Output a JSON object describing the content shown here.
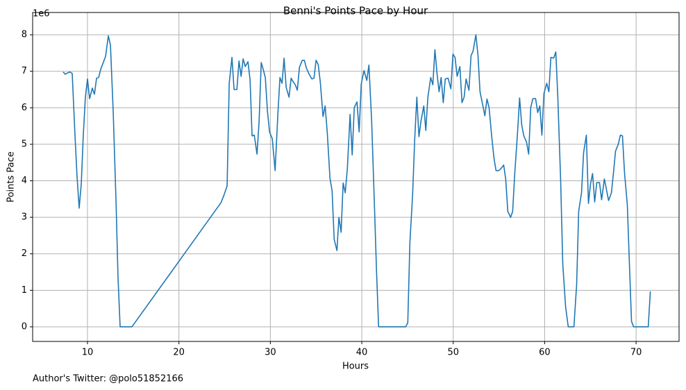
{
  "chart_data": {
    "type": "line",
    "title": "Benni's Points Pace by Hour",
    "xlabel": "Hours",
    "ylabel": "Points Pace",
    "y_offset_label": "1e6",
    "footnote": "Author's Twitter: @polo51852166",
    "grid": true,
    "xlim": [
      4.0,
      74.7
    ],
    "xticks": [
      10,
      20,
      30,
      40,
      50,
      60,
      70
    ],
    "ylim": [
      -0.4,
      8.61
    ],
    "yticks": [
      0,
      1,
      2,
      3,
      4,
      5,
      6,
      7,
      8
    ],
    "x": [
      7.34,
      7.57,
      7.87,
      8.1,
      8.33,
      8.63,
      8.86,
      9.09,
      9.32,
      9.54,
      9.77,
      10.0,
      10.23,
      10.53,
      10.76,
      10.99,
      11.22,
      11.44,
      11.98,
      12.28,
      12.51,
      12.81,
      13.12,
      13.34,
      13.57,
      14.1,
      14.86,
      24.6,
      24.9,
      25.27,
      25.5,
      25.8,
      26.03,
      26.34,
      26.57,
      26.8,
      27.02,
      27.25,
      27.55,
      27.78,
      28.0,
      28.24,
      28.54,
      28.77,
      29.0,
      29.22,
      29.45,
      29.68,
      29.91,
      30.21,
      30.52,
      30.82,
      31.05,
      31.28,
      31.5,
      31.73,
      32.04,
      32.27,
      32.5,
      32.73,
      32.95,
      33.18,
      33.49,
      33.72,
      33.94,
      34.24,
      34.54,
      34.77,
      35.0,
      35.23,
      35.46,
      35.76,
      35.99,
      36.22,
      36.52,
      36.75,
      36.98,
      37.28,
      37.5,
      37.74,
      37.96,
      38.19,
      38.42,
      38.72,
      38.95,
      39.18,
      39.48,
      39.71,
      39.94,
      40.24,
      40.55,
      40.78,
      41.08,
      41.38,
      41.61,
      41.84,
      42.98,
      44.8,
      45.03,
      45.26,
      45.56,
      45.79,
      46.02,
      46.25,
      46.47,
      46.78,
      47.0,
      47.23,
      47.54,
      47.77,
      48.0,
      48.22,
      48.45,
      48.68,
      48.91,
      49.13,
      49.44,
      49.74,
      49.97,
      50.2,
      50.43,
      50.73,
      50.96,
      51.19,
      51.41,
      51.72,
      51.95,
      52.17,
      52.48,
      52.71,
      52.93,
      53.16,
      53.46,
      53.69,
      53.92,
      54.22,
      54.45,
      54.68,
      54.98,
      55.21,
      55.52,
      55.74,
      55.97,
      56.28,
      56.5,
      56.73,
      57.04,
      57.26,
      57.49,
      57.72,
      58.02,
      58.25,
      58.48,
      58.71,
      59.01,
      59.24,
      59.47,
      59.7,
      59.92,
      60.23,
      60.46,
      60.68,
      60.99,
      61.22,
      61.44,
      61.75,
      61.98,
      62.29,
      62.58,
      62.89,
      63.2,
      63.5,
      63.72,
      64.03,
      64.26,
      64.56,
      64.79,
      65.02,
      65.24,
      65.47,
      65.7,
      66.0,
      66.23,
      66.53,
      66.76,
      66.99,
      67.3,
      67.52,
      67.75,
      68.05,
      68.28,
      68.51,
      68.74,
      69.04,
      69.27,
      69.5,
      69.73,
      70.0,
      71.1,
      71.33,
      71.56
    ],
    "series": [
      {
        "name": "Points Pace",
        "color": "#1f77b4",
        "values": [
          6.98,
          6.92,
          6.96,
          6.98,
          6.94,
          5.25,
          4.11,
          3.25,
          3.92,
          5.25,
          6.29,
          6.79,
          6.25,
          6.54,
          6.37,
          6.81,
          6.83,
          7.05,
          7.41,
          7.97,
          7.72,
          5.91,
          3.44,
          1.35,
          0,
          0,
          0,
          3.4,
          3.59,
          3.86,
          6.67,
          7.38,
          6.5,
          6.5,
          7.28,
          6.86,
          7.34,
          7.13,
          7.26,
          6.77,
          5.23,
          5.25,
          4.73,
          5.63,
          7.24,
          7.05,
          6.83,
          5.91,
          5.34,
          5.15,
          4.28,
          5.82,
          6.83,
          6.67,
          7.36,
          6.56,
          6.29,
          6.81,
          6.71,
          6.63,
          6.48,
          7.11,
          7.3,
          7.3,
          7.09,
          6.92,
          6.79,
          6.81,
          7.3,
          7.19,
          6.71,
          5.76,
          6.05,
          5.34,
          4.07,
          3.73,
          2.4,
          2.09,
          3.0,
          2.59,
          3.94,
          3.67,
          4.33,
          5.82,
          4.71,
          6.01,
          6.16,
          5.34,
          6.65,
          7.02,
          6.75,
          7.17,
          5.63,
          3.35,
          1.54,
          0,
          0,
          0,
          0.11,
          2.3,
          3.63,
          5.15,
          6.29,
          5.21,
          5.63,
          6.05,
          5.38,
          6.29,
          6.83,
          6.63,
          7.59,
          6.96,
          6.44,
          6.83,
          6.14,
          6.79,
          6.81,
          6.52,
          7.47,
          7.38,
          6.86,
          7.13,
          6.14,
          6.29,
          6.79,
          6.48,
          7.43,
          7.55,
          8.0,
          7.43,
          6.44,
          6.16,
          5.78,
          6.24,
          6.01,
          5.19,
          4.64,
          4.28,
          4.28,
          4.33,
          4.43,
          4.05,
          3.16,
          3.0,
          3.16,
          4.2,
          5.34,
          6.27,
          5.53,
          5.23,
          5.06,
          4.73,
          6.01,
          6.25,
          6.25,
          5.87,
          6.05,
          5.25,
          6.39,
          6.67,
          6.44,
          7.38,
          7.36,
          7.53,
          6.29,
          4.01,
          1.73,
          0.55,
          0,
          0,
          0,
          1.16,
          3.16,
          3.67,
          4.77,
          5.25,
          3.38,
          3.92,
          4.2,
          3.42,
          3.95,
          3.95,
          3.48,
          4.05,
          3.76,
          3.46,
          3.67,
          4.2,
          4.81,
          5.0,
          5.25,
          5.23,
          4.2,
          3.35,
          1.73,
          0.15,
          0,
          0,
          0,
          0,
          0.97
        ]
      }
    ]
  }
}
